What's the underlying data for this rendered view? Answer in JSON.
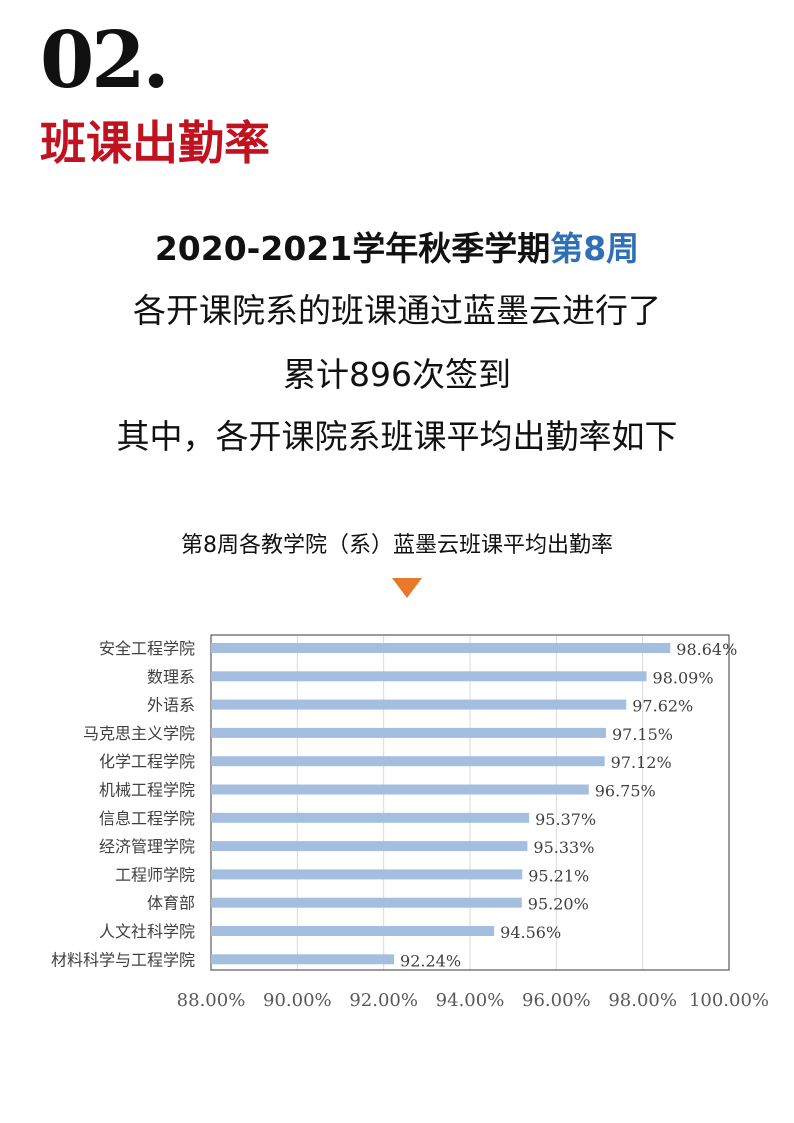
{
  "header": {
    "section_number": "02.",
    "section_title": "班课出勤率"
  },
  "headline": {
    "line1_prefix": "2020-2021学年秋季学期",
    "line1_accent": "第8周",
    "line2": "各开课院系的班课通过蓝墨云进行了",
    "line3": "累计896次签到",
    "line4": "其中，各开课院系班课平均出勤率如下"
  },
  "colors": {
    "accent_blue": "#2f6fb6",
    "title_red": "#c1121f",
    "triangle_orange": "#e8792b",
    "bar_fill": "#a4bedf"
  },
  "chart_data": {
    "type": "bar",
    "orientation": "horizontal",
    "title": "第8周各教学院（系）蓝墨云班课平均出勤率",
    "categories": [
      "安全工程学院",
      "数理系",
      "外语系",
      "马克思主义学院",
      "化学工程学院",
      "机械工程学院",
      "信息工程学院",
      "经济管理学院",
      "工程师学院",
      "体育部",
      "人文社科学院",
      "材料科学与工程学院"
    ],
    "values": [
      98.64,
      98.09,
      97.62,
      97.15,
      97.12,
      96.75,
      95.37,
      95.33,
      95.21,
      95.2,
      94.56,
      92.24
    ],
    "value_labels": [
      "98.64%",
      "98.09%",
      "97.62%",
      "97.15%",
      "97.12%",
      "96.75%",
      "95.37%",
      "95.33%",
      "95.21%",
      "95.20%",
      "94.56%",
      "92.24%"
    ],
    "xlim": [
      88,
      100
    ],
    "xticks": [
      "88.00%",
      "90.00%",
      "92.00%",
      "94.00%",
      "96.00%",
      "98.00%",
      "100.00%"
    ],
    "grid": true,
    "legend": "none"
  }
}
